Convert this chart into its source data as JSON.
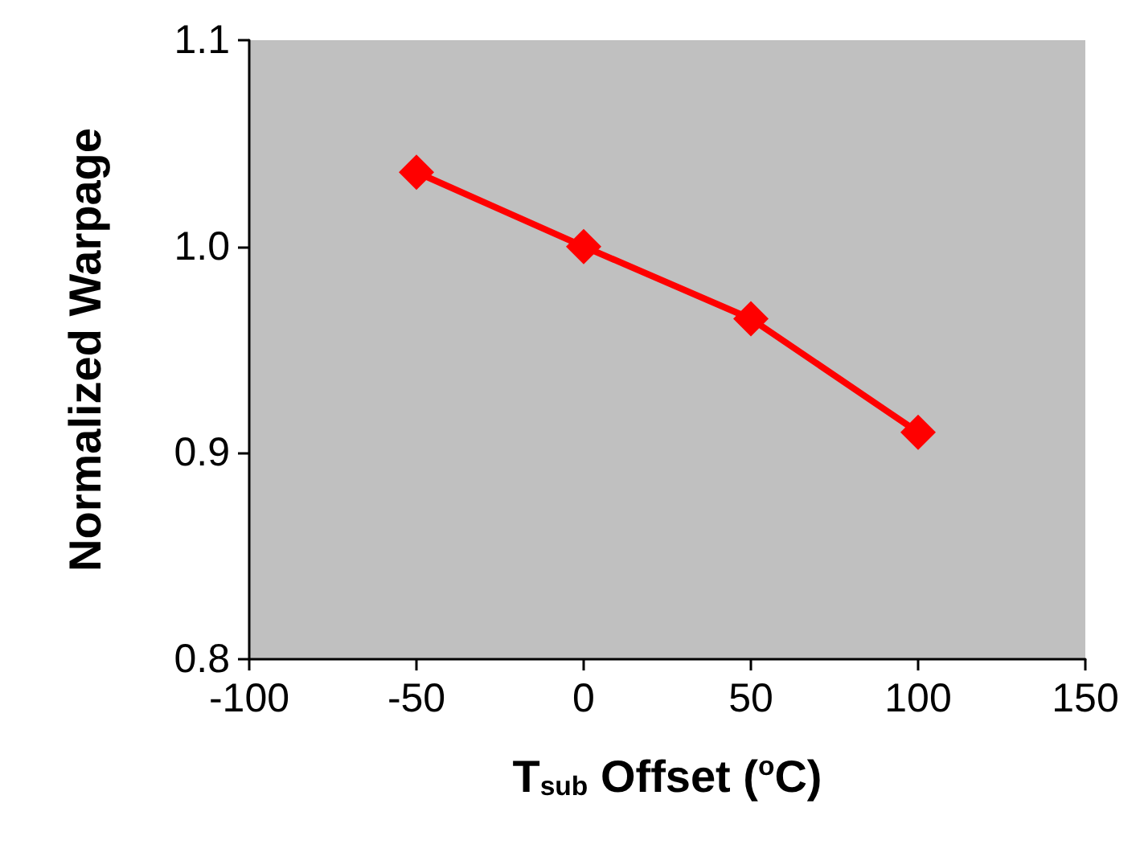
{
  "chart_data": {
    "type": "line",
    "xlabel": "T$_{sub}$ Offset ($^{o}$C)",
    "ylabel": "Normalized Warpage",
    "x": [
      -50,
      0,
      50,
      100
    ],
    "series": [
      {
        "color": "#ff0000",
        "values": [
          1.036,
          1.0,
          0.965,
          0.91
        ]
      }
    ],
    "xlim": [
      -100,
      150
    ],
    "xticks": [
      -100,
      -50,
      0,
      50,
      100,
      150
    ],
    "ylim": [
      0.8,
      1.1
    ],
    "yticks": [
      {
        "value": 0.8,
        "label": "0.8"
      },
      {
        "value": 0.9,
        "label": "0.9"
      },
      {
        "value": 1.0,
        "label": "1.0"
      },
      {
        "value": 1.1,
        "label": "1.1"
      }
    ],
    "marker": "diamond",
    "line_style": "solid"
  }
}
